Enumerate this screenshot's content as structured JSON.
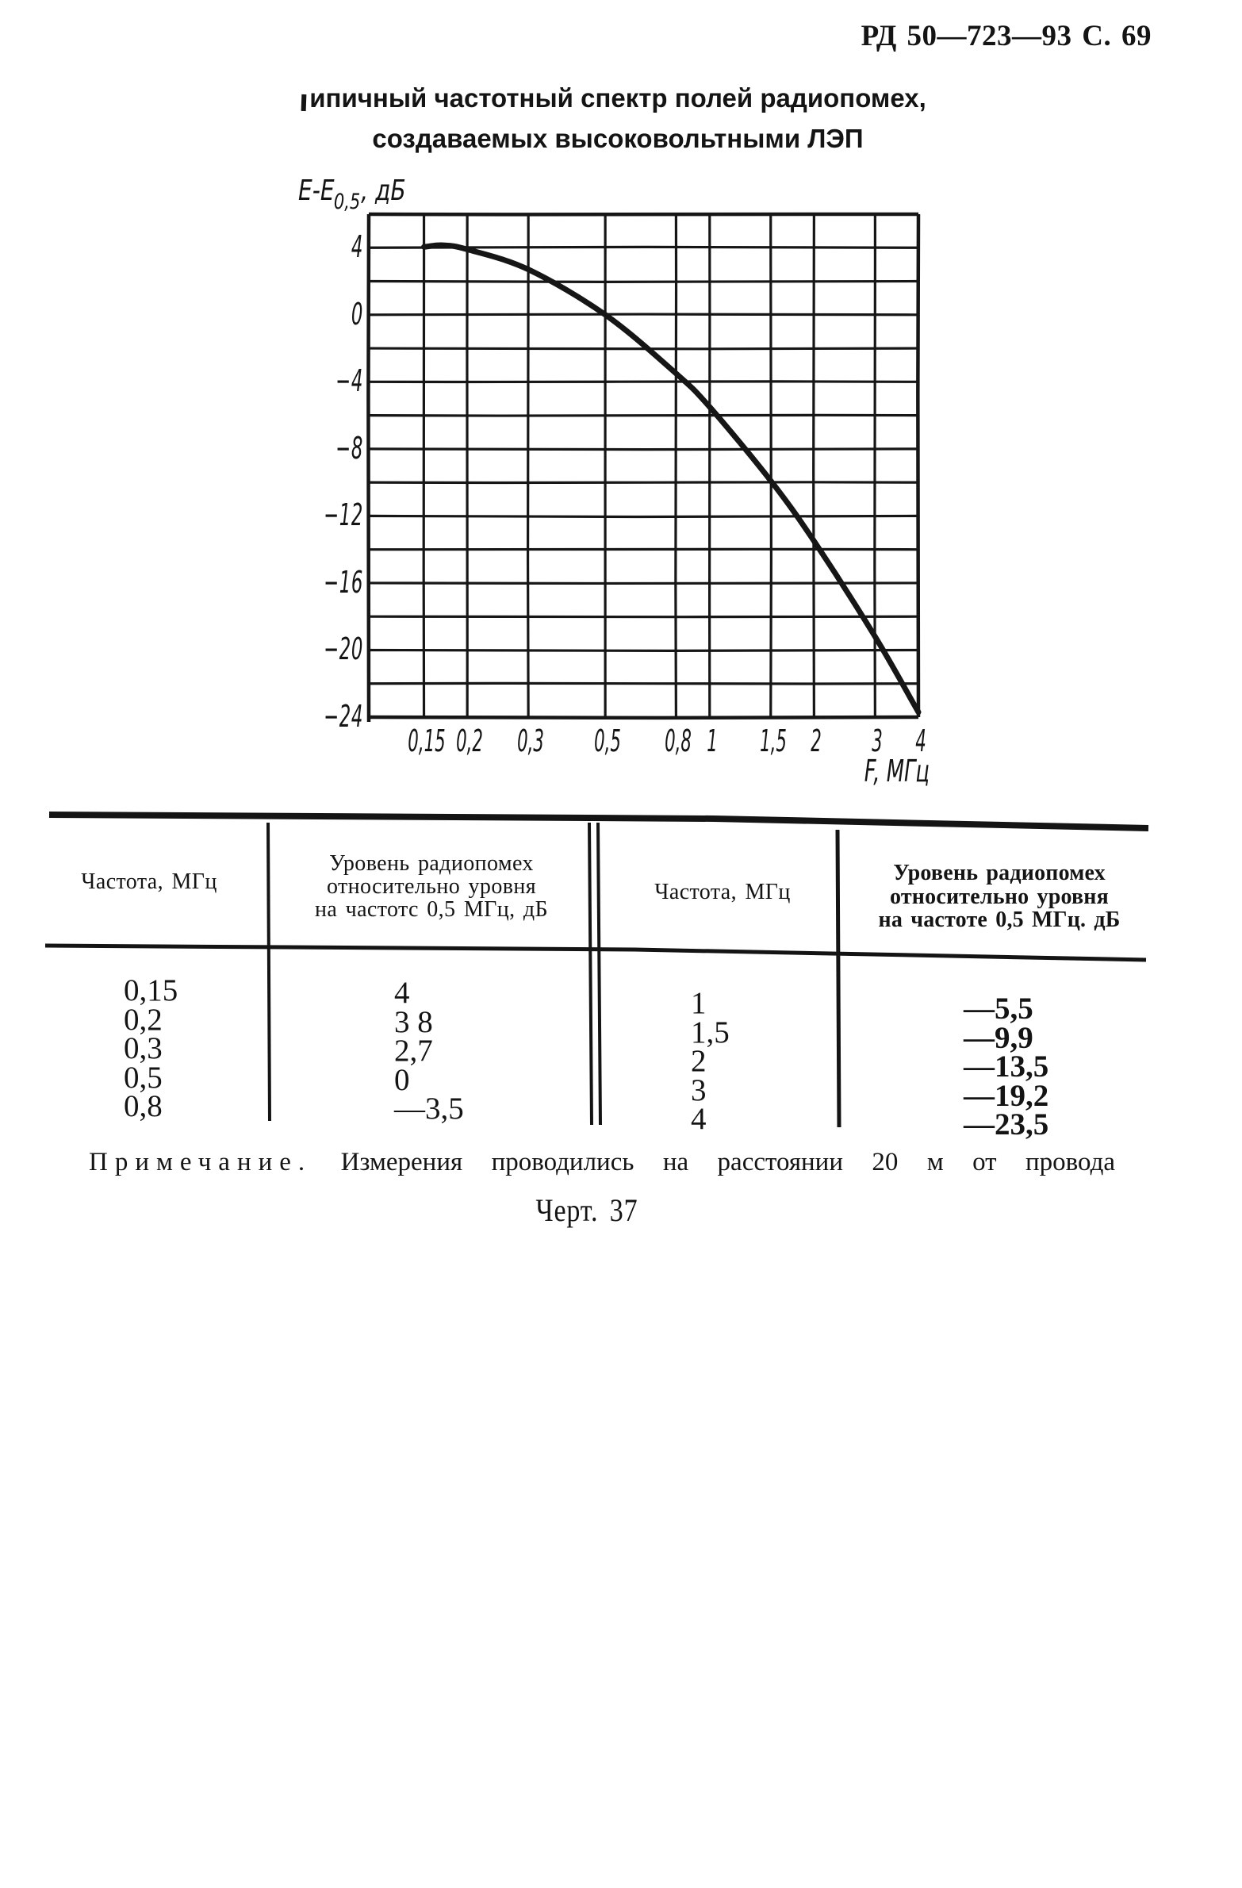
{
  "page": {
    "header": "РД 50—723—93 С. 69",
    "title_line1": "ипичный частотный спектр полей радиопомех,",
    "title_line2": "создаваемых высоковольтными ЛЭП",
    "note_label": "Примечание.",
    "note_text": "Измерения проводились на расстоянии 20 м от провода",
    "caption": "Черт. 37"
  },
  "chart_data": {
    "type": "line",
    "title": "Типичный частотный спектр полей радиопомех, создаваемых высоковольтными ЛЭП",
    "xlabel": "F, МГц",
    "ylabel": "E-E0,5, дБ",
    "ylabel_parts": [
      "E-E",
      "0,5",
      ", дБ"
    ],
    "x_scale": "log",
    "x": [
      0.15,
      0.2,
      0.3,
      0.5,
      0.8,
      1,
      1.5,
      2,
      3,
      4
    ],
    "y": [
      4,
      3.8,
      2.7,
      0,
      -3.5,
      -5.5,
      -9.9,
      -13.5,
      -19.2,
      -23.5
    ],
    "curve_trace": {
      "x": [
        0.15,
        0.17,
        0.2,
        0.3,
        0.5,
        0.8,
        1,
        1.5,
        2,
        3,
        4
      ],
      "y": [
        4.05,
        4.15,
        3.9,
        2.7,
        0,
        -3.5,
        -5.5,
        -9.9,
        -13.5,
        -19.2,
        -23.7
      ]
    },
    "xlim": [
      0.104,
      4
    ],
    "ylim": [
      -24,
      6
    ],
    "x_tick_labels": [
      "0,15",
      "0,2",
      "0,3",
      "0,5",
      "0,8",
      "1",
      "1,5",
      "2",
      "3",
      "4"
    ],
    "y_ticks": [
      4,
      0,
      -4,
      -8,
      -12,
      -16,
      -20,
      -24
    ],
    "y_tick_labels": [
      "4",
      "0",
      "−4",
      "−8",
      "−12",
      "−16",
      "−20",
      "−24"
    ],
    "grid": "on",
    "y_grid_step": 2,
    "legend": "none"
  },
  "table": {
    "col1_header": "Частота, МГц",
    "col2_header_lines": [
      "Уровень радиопомех",
      "относительно уровня",
      "на частотс 0,5 МГц, дБ"
    ],
    "col3_header": "Частота, МГц",
    "col4_header_lines": [
      "Уровень радиопомех",
      "относительно уровня",
      "на частоте 0,5 МГц. дБ"
    ],
    "rows_left": [
      [
        "0,15",
        "4"
      ],
      [
        "0,2",
        "3 8"
      ],
      [
        "0,3",
        "2,7"
      ],
      [
        "0,5",
        "0"
      ],
      [
        "0,8",
        "—3,5"
      ]
    ],
    "rows_right": [
      [
        "1",
        "—5,5"
      ],
      [
        "1,5",
        "—9,9"
      ],
      [
        "2",
        "—13,5"
      ],
      [
        "3",
        "—19,2"
      ],
      [
        "4",
        "—23,5"
      ]
    ]
  }
}
